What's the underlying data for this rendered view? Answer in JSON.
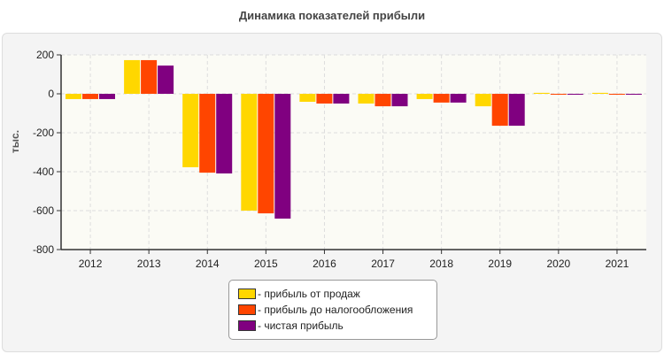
{
  "chart_data": {
    "type": "bar",
    "title": "Динамика показателей прибыли",
    "ylabel": "тыс.",
    "xlabel": "",
    "ylim": [
      -800,
      200
    ],
    "yticks": [
      200,
      0,
      -200,
      -400,
      -600,
      -800
    ],
    "grid": true,
    "legend_position": "bottom",
    "categories": [
      "2012",
      "2013",
      "2014",
      "2015",
      "2016",
      "2017",
      "2018",
      "2019",
      "2020",
      "2021"
    ],
    "series": [
      {
        "name": "- прибыль от продаж",
        "color": "#FFD700",
        "values": [
          -27,
          173,
          -377,
          -600,
          -41,
          -50,
          -27,
          -64,
          5,
          5
        ]
      },
      {
        "name": "- прибыль до налогообложения",
        "color": "#FF4500",
        "values": [
          -27,
          173,
          -405,
          -614,
          -50,
          -64,
          -45,
          -164,
          -2,
          -2
        ]
      },
      {
        "name": "- чистая прибыль",
        "color": "#800080",
        "values": [
          -27,
          145,
          -409,
          -641,
          -50,
          -64,
          -45,
          -164,
          -2,
          -2
        ]
      }
    ]
  }
}
